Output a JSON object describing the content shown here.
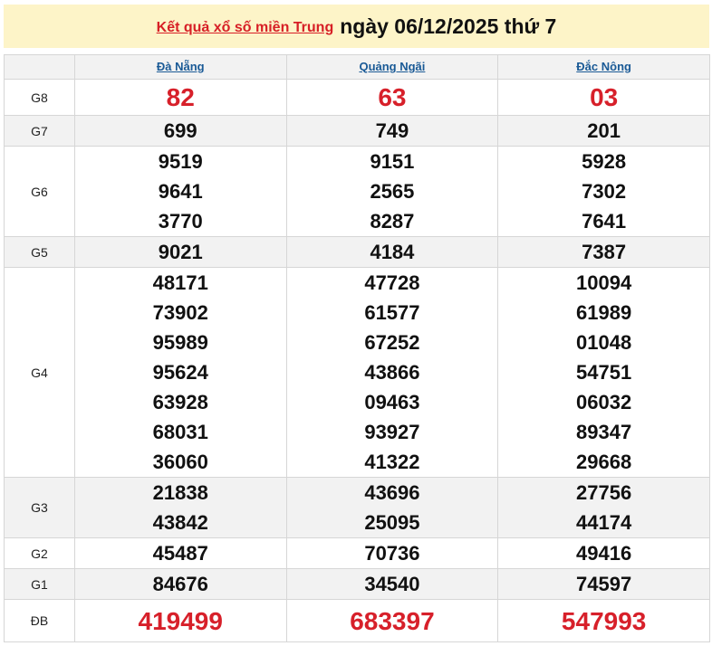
{
  "header": {
    "link": "Kết quả xổ số miền Trung",
    "date": "ngày 06/12/2025 thứ 7"
  },
  "provinces": [
    "Đà Nẵng",
    "Quảng Ngãi",
    "Đắc Nông"
  ],
  "colors": {
    "red": "#d7202a",
    "link": "#1a5a96",
    "banner": "#fdf4c8"
  },
  "rows": [
    {
      "label": "G8",
      "values": [
        [
          "82"
        ],
        [
          "63"
        ],
        [
          "03"
        ]
      ]
    },
    {
      "label": "G7",
      "values": [
        [
          "699"
        ],
        [
          "749"
        ],
        [
          "201"
        ]
      ]
    },
    {
      "label": "G6",
      "values": [
        [
          "9519",
          "9641",
          "3770"
        ],
        [
          "9151",
          "2565",
          "8287"
        ],
        [
          "5928",
          "7302",
          "7641"
        ]
      ]
    },
    {
      "label": "G5",
      "values": [
        [
          "9021"
        ],
        [
          "4184"
        ],
        [
          "7387"
        ]
      ]
    },
    {
      "label": "G4",
      "values": [
        [
          "48171",
          "73902",
          "95989",
          "95624",
          "63928",
          "68031",
          "36060"
        ],
        [
          "47728",
          "61577",
          "67252",
          "43866",
          "09463",
          "93927",
          "41322"
        ],
        [
          "10094",
          "61989",
          "01048",
          "54751",
          "06032",
          "89347",
          "29668"
        ]
      ]
    },
    {
      "label": "G3",
      "values": [
        [
          "21838",
          "43842"
        ],
        [
          "43696",
          "25095"
        ],
        [
          "27756",
          "44174"
        ]
      ]
    },
    {
      "label": "G2",
      "values": [
        [
          "45487"
        ],
        [
          "70736"
        ],
        [
          "49416"
        ]
      ]
    },
    {
      "label": "G1",
      "values": [
        [
          "84676"
        ],
        [
          "34540"
        ],
        [
          "74597"
        ]
      ]
    },
    {
      "label": "ĐB",
      "values": [
        [
          "419499"
        ],
        [
          "683397"
        ],
        [
          "547993"
        ]
      ]
    }
  ]
}
